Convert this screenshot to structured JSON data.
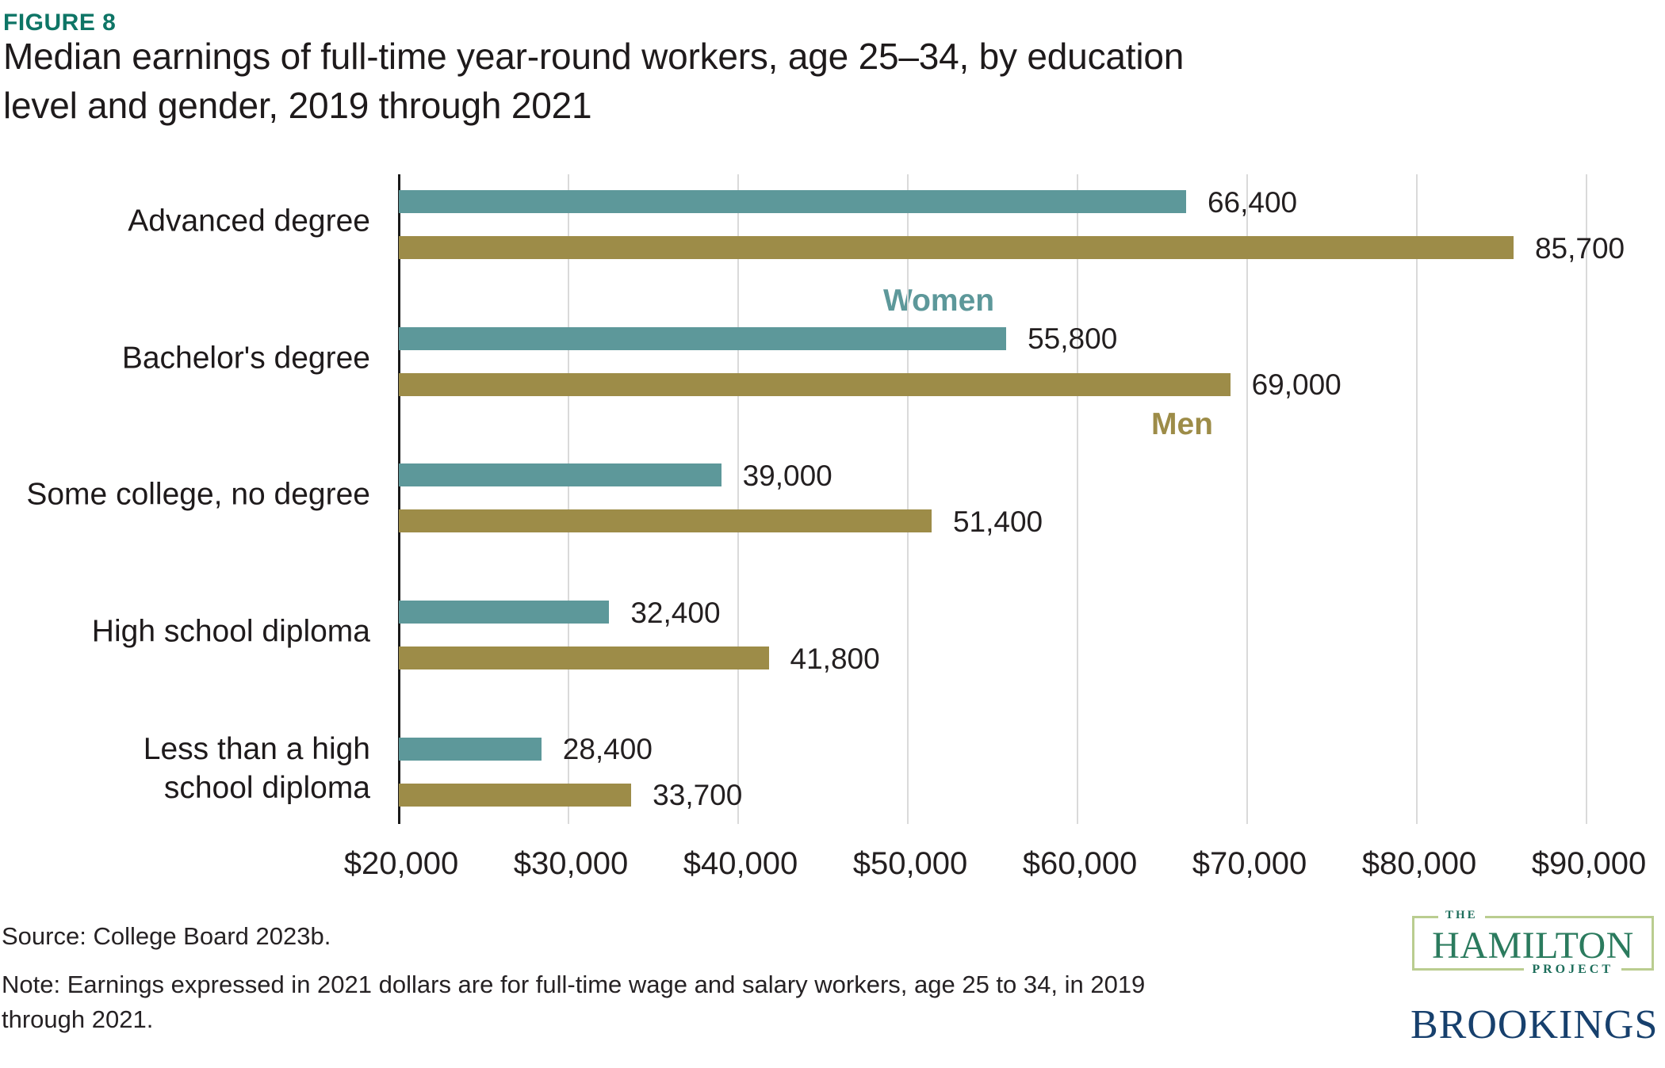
{
  "figure_label": "FIGURE 8",
  "title": "Median earnings of full-time year-round workers, age 25–34, by education\nlevel and gender, 2019 through 2021",
  "colors": {
    "figure_label": "#0E7566",
    "title_text": "#1E1A1B",
    "women": "#5D989A",
    "men": "#9D8C48",
    "gridline": "#DADADA",
    "axis": "#1A1A1A",
    "value_text": "#231F20",
    "hamilton_green": "#2B7B5E",
    "hamilton_border": "#BACD90",
    "brookings_navy": "#17406D"
  },
  "chart_data": {
    "type": "bar",
    "orientation": "horizontal",
    "title": "Median earnings of full-time year-round workers, age 25–34, by education level and gender, 2019 through 2021",
    "categories": [
      "Advanced degree",
      "Bachelor's degree",
      "Some college, no degree",
      "High school diploma",
      "Less than a high\nschool diploma"
    ],
    "series": [
      {
        "name": "Women",
        "color": "#5D989A",
        "values": [
          66400,
          55800,
          39000,
          32400,
          28400
        ],
        "labels": [
          "66,400",
          "55,800",
          "39,000",
          "32,400",
          "28,400"
        ]
      },
      {
        "name": "Men",
        "color": "#9D8C48",
        "values": [
          85700,
          69000,
          51400,
          41800,
          33700
        ],
        "labels": [
          "85,700",
          "69,000",
          "51,400",
          "41,800",
          "33,700"
        ]
      }
    ],
    "x_axis": {
      "min": 20000,
      "max": 92000,
      "tick_interval": 10000,
      "tick_values": [
        20000,
        30000,
        40000,
        50000,
        60000,
        70000,
        80000,
        90000
      ],
      "tick_labels": [
        "$20,000",
        "$30,000",
        "$40,000",
        "$50,000",
        "$60,000",
        "$70,000",
        "$80,000",
        "$90,000"
      ]
    },
    "grid": "vertical",
    "legend_position": "inline-labels",
    "value_labels_shown": true
  },
  "footer": {
    "source": "Source: College Board 2023b.",
    "note": "Note: Earnings expressed in 2021 dollars are for full-time wage and salary workers, age 25 to 34, in 2019\nthrough 2021."
  },
  "logos": {
    "hamilton": {
      "the": "THE",
      "name": "HAMILTON",
      "project": "PROJECT"
    },
    "brookings": "BROOKINGS"
  }
}
